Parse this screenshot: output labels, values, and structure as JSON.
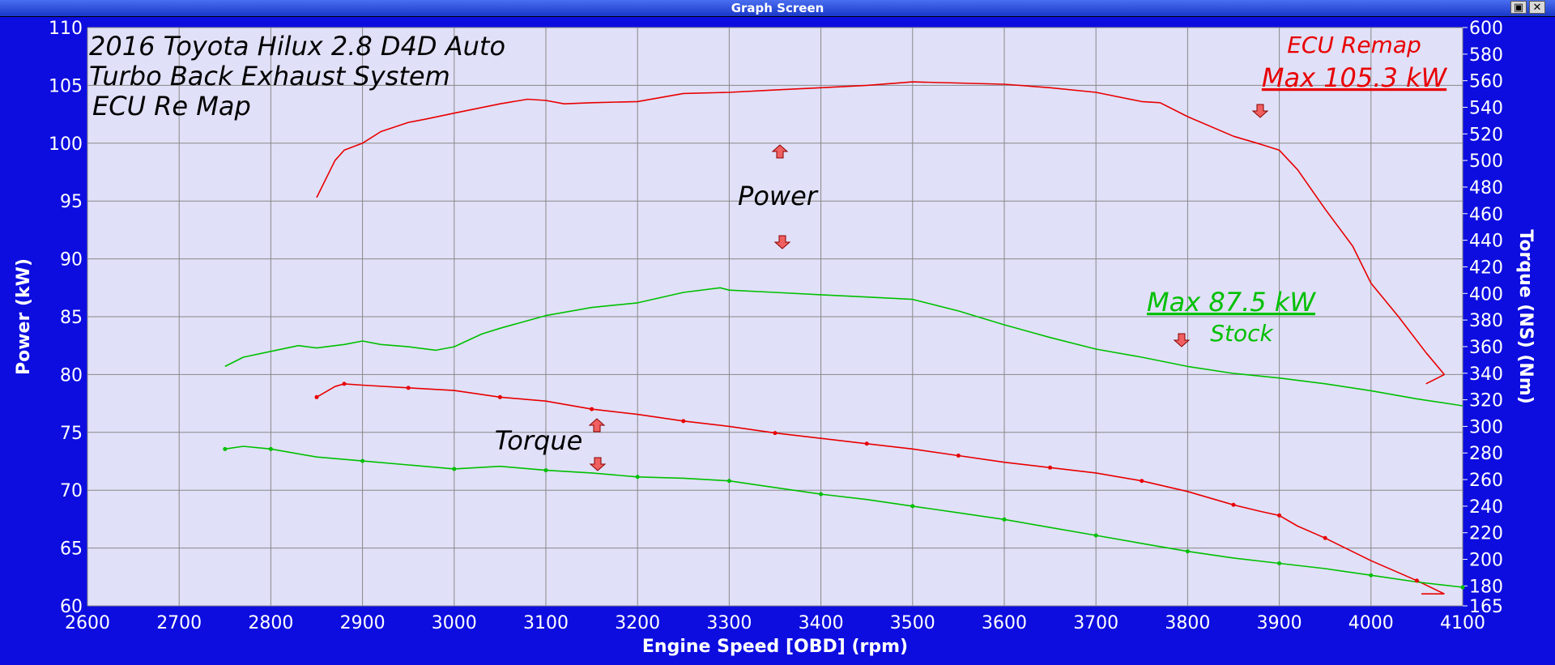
{
  "window": {
    "title": "Graph Screen",
    "restore_icon": "restore-icon",
    "close_icon": "close-icon"
  },
  "annotations": {
    "title_lines": [
      "2016 Toyota Hilux 2.8 D4D Auto",
      "Turbo Back Exhaust System",
      "ECU Re Map"
    ],
    "ecu_remap": "ECU Remap",
    "max_remap": "Max 105.3 kW",
    "max_stock": "Max 87.5 kW",
    "stock": "Stock",
    "power": "Power",
    "torque": "Torque"
  },
  "colors": {
    "remap": "#e80000",
    "stock": "#00c000",
    "plot_bg": "#e0e0f8",
    "frame": "#0d0de0"
  },
  "chart_data": {
    "type": "line",
    "xlabel": "Engine Speed [OBD] (rpm)",
    "ylabel": "Power (kW)",
    "y2label": "Torque (NS) (Nm)",
    "xlim": [
      2600,
      4100
    ],
    "ylim": [
      60,
      110
    ],
    "y2lim": [
      165,
      600
    ],
    "xticks": [
      2600,
      2700,
      2800,
      2900,
      3000,
      3100,
      3200,
      3300,
      3400,
      3500,
      3600,
      3700,
      3800,
      3900,
      4000,
      4100
    ],
    "yticks": [
      60,
      65,
      70,
      75,
      80,
      85,
      90,
      95,
      100,
      105,
      110
    ],
    "y2ticks": [
      165,
      180,
      200,
      220,
      240,
      260,
      280,
      300,
      320,
      340,
      360,
      380,
      400,
      420,
      440,
      460,
      480,
      500,
      520,
      540,
      560,
      580,
      600
    ],
    "grid": true,
    "series": [
      {
        "name": "ECU Remap",
        "kind": "power",
        "axis": "left",
        "color": "#e80000",
        "x": [
          2850,
          2870,
          2880,
          2900,
          2920,
          2950,
          2970,
          3000,
          3050,
          3080,
          3100,
          3120,
          3150,
          3200,
          3250,
          3300,
          3350,
          3400,
          3450,
          3500,
          3550,
          3600,
          3650,
          3700,
          3750,
          3770,
          3800,
          3850,
          3880,
          3900,
          3920,
          3950,
          3980,
          4000,
          4030,
          4060,
          4080
        ],
        "y": [
          95.3,
          98.5,
          99.4,
          100,
          101,
          101.8,
          102.1,
          102.6,
          103.4,
          103.8,
          103.7,
          103.4,
          103.5,
          103.6,
          104.3,
          104.4,
          104.6,
          104.8,
          105,
          105.3,
          105.2,
          105.1,
          104.8,
          104.4,
          103.6,
          103.5,
          102.3,
          100.6,
          99.9,
          99.4,
          97.7,
          94.3,
          91.1,
          87.9,
          85,
          81.9,
          80
        ]
      },
      {
        "name": "Stock",
        "kind": "power",
        "axis": "left",
        "color": "#00c000",
        "x": [
          2750,
          2770,
          2800,
          2830,
          2850,
          2880,
          2900,
          2920,
          2950,
          2980,
          3000,
          3030,
          3050,
          3100,
          3150,
          3200,
          3250,
          3290,
          3300,
          3350,
          3400,
          3450,
          3500,
          3550,
          3600,
          3650,
          3700,
          3750,
          3800,
          3850,
          3900,
          3950,
          4000,
          4050,
          4100
        ],
        "y": [
          80.7,
          81.5,
          82,
          82.5,
          82.3,
          82.6,
          82.9,
          82.6,
          82.4,
          82.1,
          82.4,
          83.5,
          84,
          85.1,
          85.8,
          86.2,
          87.1,
          87.5,
          87.3,
          87.1,
          86.9,
          86.7,
          86.5,
          85.5,
          84.3,
          83.2,
          82.2,
          81.5,
          80.7,
          80.1,
          79.7,
          79.2,
          78.6,
          77.9,
          77.3
        ]
      },
      {
        "name": "ECU Remap",
        "kind": "torque",
        "axis": "right",
        "color": "#e80000",
        "x": [
          2850,
          2870,
          2880,
          2900,
          2950,
          3000,
          3050,
          3100,
          3150,
          3200,
          3250,
          3300,
          3350,
          3400,
          3450,
          3500,
          3550,
          3600,
          3650,
          3700,
          3750,
          3800,
          3850,
          3880,
          3900,
          3920,
          3950,
          4000,
          4050,
          4080
        ],
        "y": [
          322,
          330,
          332,
          331,
          329,
          327,
          322,
          319,
          313,
          309,
          304,
          300,
          295,
          291,
          287,
          283,
          278,
          273,
          269,
          265,
          259,
          251,
          241,
          236,
          233,
          225,
          216,
          199,
          184,
          174
        ]
      },
      {
        "name": "Stock",
        "kind": "torque",
        "axis": "right",
        "color": "#00c000",
        "x": [
          2750,
          2770,
          2800,
          2850,
          2900,
          2950,
          3000,
          3050,
          3100,
          3150,
          3200,
          3250,
          3300,
          3350,
          3400,
          3450,
          3500,
          3550,
          3600,
          3650,
          3700,
          3750,
          3800,
          3850,
          3900,
          3950,
          4000,
          4050,
          4100
        ],
        "y": [
          283,
          285,
          283,
          277,
          274,
          271,
          268,
          270,
          267,
          265,
          262,
          261,
          259,
          254,
          249,
          245,
          240,
          235,
          230,
          224,
          218,
          212,
          206,
          201,
          197,
          193,
          188,
          183,
          179
        ]
      }
    ]
  }
}
